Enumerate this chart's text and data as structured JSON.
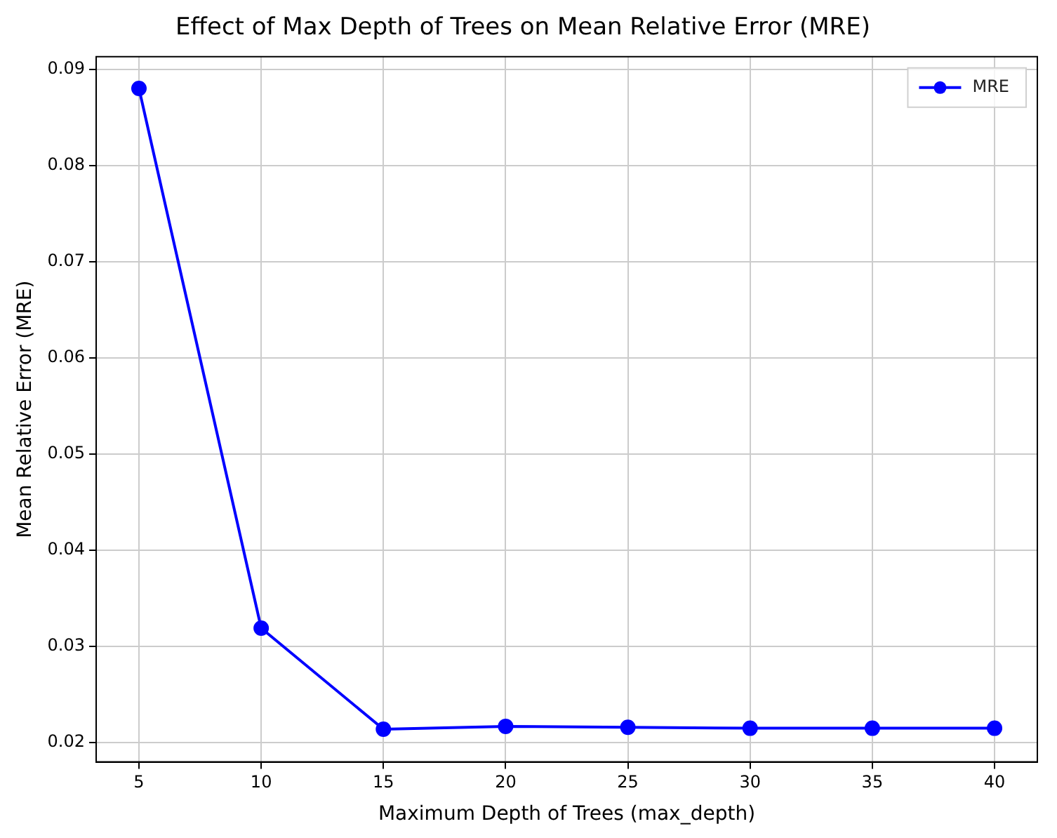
{
  "chart_data": {
    "type": "line",
    "title": "Effect of Max Depth of Trees on Mean Relative Error (MRE)",
    "xlabel": "Maximum Depth of Trees (max_depth)",
    "ylabel": "Mean Relative Error (MRE)",
    "x": [
      5,
      10,
      15,
      20,
      25,
      30,
      35,
      40
    ],
    "series": [
      {
        "name": "MRE",
        "color": "#0000ff",
        "values": [
          0.088,
          0.0319,
          0.0214,
          0.0217,
          0.0216,
          0.0215,
          0.0215,
          0.0215
        ]
      }
    ],
    "xlim": [
      3.25,
      41.75
    ],
    "xticks": [
      5,
      10,
      15,
      20,
      25,
      30,
      35,
      40
    ],
    "ylim": [
      0.018,
      0.0913
    ],
    "yticks": [
      {
        "value": 0.02,
        "label": "0.02"
      },
      {
        "value": 0.03,
        "label": "0.03"
      },
      {
        "value": 0.04,
        "label": "0.04"
      },
      {
        "value": 0.05,
        "label": "0.05"
      },
      {
        "value": 0.06,
        "label": "0.06"
      },
      {
        "value": 0.07,
        "label": "0.07"
      },
      {
        "value": 0.08,
        "label": "0.08"
      },
      {
        "value": 0.09,
        "label": "0.09"
      }
    ],
    "grid": true,
    "legend": "top right",
    "marker": "circle",
    "line_style": "solid"
  }
}
